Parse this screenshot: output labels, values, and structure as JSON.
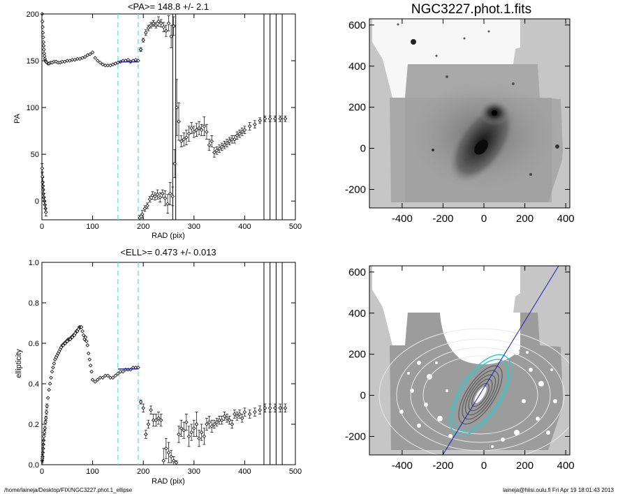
{
  "footer": {
    "path": "/home/laineja/Desktop/FIX/NGC3227.phot.1_ellipse",
    "user_date": "laineja@hiisi.oulu.fi  Fri Apr 19 18:01:43 2013"
  },
  "colors": {
    "data": "#000000",
    "fit_line": "#1c1cb4",
    "dashed": "#5fe3d6",
    "vlines": "#000000",
    "image_bg": "#c6c6c6",
    "ellipse_cyan": "#36c9c9"
  },
  "chart_data": [
    {
      "type": "scatter",
      "title": "<PA>= 148.8 +/-   2.1",
      "xlabel": "RAD (pix)",
      "ylabel": "PA",
      "xlim": [
        0,
        500
      ],
      "ylim": [
        -20,
        200
      ],
      "xticks": [
        "0",
        "100",
        "200",
        "300",
        "400",
        "500"
      ],
      "yticks": [
        "0",
        "50",
        "100",
        "150",
        "200"
      ],
      "xtick_values": [
        0,
        100,
        200,
        300,
        400,
        500
      ],
      "ytick_values": [
        0,
        50,
        100,
        150,
        200
      ],
      "mean_value": 148.8,
      "mean_error": 2.1,
      "fit_range": [
        150,
        190
      ],
      "vertical_lines": [
        258,
        264,
        438,
        450,
        462,
        474
      ],
      "series": [
        {
          "x": [
            0.5,
            1,
            1.5,
            2,
            2.5,
            3,
            3.5,
            4,
            4.5,
            5,
            6,
            7,
            8,
            10,
            12,
            14,
            17,
            20,
            24,
            28,
            32,
            36,
            40,
            45,
            50,
            55,
            60,
            65,
            70,
            75,
            80,
            85,
            90,
            95,
            100,
            105,
            110,
            115,
            120,
            125,
            130,
            135,
            140,
            145,
            150,
            155,
            160,
            165,
            170,
            175,
            180,
            185,
            190,
            195,
            200,
            205,
            210,
            215,
            220,
            225,
            230,
            235,
            240,
            245,
            250,
            255,
            260
          ],
          "y": [
            200,
            192,
            186,
            180,
            175,
            170,
            166,
            162,
            158,
            155,
            152,
            150,
            149,
            148,
            147,
            147,
            148,
            148,
            149,
            149,
            148,
            148,
            149,
            149,
            150,
            150,
            151,
            151,
            152,
            152,
            153,
            154,
            156,
            157,
            159,
            153,
            150,
            148,
            146,
            145,
            145,
            145,
            146,
            147,
            148,
            149,
            150,
            150,
            151,
            149,
            150,
            151,
            150,
            162,
            172,
            180,
            185,
            188,
            190,
            188,
            192,
            190,
            186,
            182,
            190,
            176,
            187
          ],
          "yerr": [
            0,
            0,
            0,
            0,
            0,
            0,
            0,
            0,
            0,
            0,
            0,
            0,
            0,
            0,
            0,
            0,
            0,
            0,
            0,
            0,
            0,
            0,
            0,
            0,
            0,
            0,
            0,
            0,
            0,
            0,
            0,
            0,
            0,
            0,
            0,
            0,
            0,
            0,
            0,
            0,
            0,
            0,
            0,
            0,
            0,
            0,
            0,
            0,
            0,
            0,
            0,
            0,
            0,
            2,
            2,
            3,
            3,
            3,
            3,
            3,
            5,
            4,
            5,
            6,
            8,
            12,
            10
          ]
        },
        {
          "x": [
            0.5,
            1,
            1.5,
            2,
            2.5,
            3,
            4,
            5,
            6,
            7,
            8
          ],
          "y": [
            35,
            26,
            20,
            16,
            12,
            8,
            4,
            0,
            -4,
            -8,
            -12
          ],
          "yerr": [
            5,
            5,
            5,
            5,
            5,
            5,
            4,
            4,
            4,
            4,
            4
          ]
        },
        {
          "x": [
            193,
            198,
            203,
            208,
            213,
            218,
            223,
            228,
            233,
            238,
            243,
            248,
            253,
            258,
            262,
            266,
            270,
            275,
            280,
            285,
            290,
            295,
            300,
            305,
            310,
            315,
            320,
            325,
            330,
            335,
            340,
            345,
            350,
            355,
            360,
            365,
            370,
            375,
            380,
            385,
            390,
            395,
            400,
            410,
            420,
            430,
            440,
            450,
            460,
            470,
            480
          ],
          "y": [
            -18,
            -14,
            -8,
            -5,
            2,
            6,
            5,
            7,
            4,
            8,
            3,
            -3,
            8,
            5,
            40,
            100,
            85,
            64,
            66,
            68,
            72,
            78,
            74,
            76,
            78,
            76,
            80,
            74,
            60,
            64,
            52,
            54,
            56,
            58,
            60,
            62,
            64,
            66,
            66,
            70,
            72,
            74,
            76,
            80,
            82,
            86,
            88,
            88,
            88,
            88,
            88
          ],
          "yerr": [
            3,
            4,
            3,
            3,
            3,
            4,
            4,
            5,
            5,
            4,
            8,
            10,
            12,
            10,
            15,
            30,
            20,
            6,
            7,
            8,
            8,
            6,
            6,
            7,
            7,
            6,
            10,
            8,
            6,
            6,
            5,
            4,
            4,
            4,
            4,
            4,
            4,
            4,
            4,
            4,
            4,
            4,
            4,
            4,
            4,
            3,
            3,
            3,
            3,
            3,
            3
          ]
        }
      ]
    },
    {
      "type": "scatter",
      "title": "<ELL>= 0.473 +/-  0.013",
      "xlabel": "RAD (pix)",
      "ylabel": "ellipticity",
      "xlim": [
        0,
        500
      ],
      "ylim": [
        0,
        1
      ],
      "xticks": [
        "0",
        "100",
        "200",
        "300",
        "400",
        "500"
      ],
      "yticks": [
        "0.0",
        "0.2",
        "0.4",
        "0.6",
        "0.8",
        "1.0"
      ],
      "xtick_values": [
        0,
        100,
        200,
        300,
        400,
        500
      ],
      "ytick_values": [
        0,
        0.2,
        0.4,
        0.6,
        0.8,
        1.0
      ],
      "mean_value": 0.473,
      "mean_error": 0.013,
      "fit_range": [
        150,
        190
      ],
      "vertical_lines": [
        438,
        450,
        462,
        474
      ],
      "series": [
        {
          "x": [
            0.5,
            1,
            1.5,
            2,
            2.5,
            3,
            3.5,
            4,
            5,
            6,
            7,
            8,
            9,
            10,
            12,
            14,
            16,
            18,
            20,
            22,
            24,
            26,
            28,
            30,
            32,
            34,
            36,
            38,
            40,
            42,
            44,
            46,
            48,
            50,
            52,
            54,
            56,
            58,
            60,
            62,
            64,
            66,
            68,
            70,
            72,
            74,
            76,
            78,
            80,
            82,
            84,
            86,
            88,
            90,
            92,
            94,
            96,
            98,
            100,
            105,
            110,
            115,
            120,
            125,
            130,
            135,
            140,
            145,
            150,
            155,
            160,
            165,
            170,
            175,
            180,
            185,
            190
          ],
          "y": [
            0.02,
            0.03,
            0.04,
            0.06,
            0.08,
            0.1,
            0.12,
            0.14,
            0.16,
            0.18,
            0.21,
            0.23,
            0.26,
            0.29,
            0.33,
            0.37,
            0.4,
            0.43,
            0.46,
            0.48,
            0.5,
            0.52,
            0.53,
            0.54,
            0.55,
            0.56,
            0.57,
            0.58,
            0.59,
            0.59,
            0.6,
            0.6,
            0.61,
            0.61,
            0.62,
            0.62,
            0.62,
            0.63,
            0.63,
            0.64,
            0.64,
            0.65,
            0.66,
            0.66,
            0.67,
            0.68,
            0.68,
            0.68,
            0.66,
            0.64,
            0.62,
            0.63,
            0.61,
            0.59,
            0.55,
            0.52,
            0.49,
            0.46,
            0.42,
            0.41,
            0.42,
            0.43,
            0.43,
            0.44,
            0.44,
            0.43,
            0.43,
            0.44,
            0.45,
            0.46,
            0.46,
            0.47,
            0.47,
            0.47,
            0.48,
            0.48,
            0.48
          ],
          "yerr": [
            0.02,
            0.02,
            0.02,
            0.02,
            0.02,
            0.02,
            0.02,
            0.02,
            0.01,
            0.01,
            0.01,
            0.01,
            0.01,
            0.01,
            0,
            0,
            0,
            0,
            0,
            0,
            0,
            0,
            0,
            0,
            0,
            0,
            0,
            0,
            0,
            0,
            0,
            0,
            0,
            0,
            0,
            0,
            0,
            0,
            0,
            0,
            0,
            0,
            0,
            0,
            0,
            0,
            0,
            0,
            0,
            0,
            0,
            0,
            0,
            0,
            0,
            0,
            0,
            0,
            0,
            0,
            0,
            0,
            0,
            0,
            0,
            0,
            0,
            0,
            0,
            0,
            0,
            0,
            0,
            0,
            0,
            0,
            0
          ]
        },
        {
          "x": [
            195,
            200,
            205,
            210,
            215,
            220,
            225,
            230,
            235,
            240,
            245,
            250,
            255,
            260,
            265,
            270,
            275,
            280,
            285,
            290,
            295,
            300,
            305,
            310,
            315,
            320,
            325,
            330,
            335,
            340,
            345,
            350,
            355,
            360,
            365,
            370,
            375,
            380,
            385,
            390,
            395,
            400,
            410,
            420,
            430,
            440,
            450,
            460,
            470,
            480
          ],
          "y": [
            0.31,
            0.28,
            0.15,
            0.2,
            0.27,
            0.22,
            0.22,
            0.23,
            0.22,
            0.02,
            0.08,
            0.06,
            0.04,
            0.02,
            0.01,
            0.15,
            0.18,
            0.17,
            0.21,
            0.14,
            0.16,
            0.18,
            0.2,
            0.13,
            0.16,
            0.14,
            0.2,
            0.21,
            0.19,
            0.2,
            0.21,
            0.22,
            0.22,
            0.24,
            0.23,
            0.22,
            0.2,
            0.25,
            0.24,
            0.25,
            0.23,
            0.26,
            0.25,
            0.26,
            0.27,
            0.28,
            0.28,
            0.28,
            0.28,
            0.28
          ],
          "yerr": [
            0.01,
            0.02,
            0.02,
            0.02,
            0.02,
            0.03,
            0.03,
            0.03,
            0.03,
            0.06,
            0.05,
            0.05,
            0.03,
            0.02,
            0.01,
            0.04,
            0.04,
            0.04,
            0.04,
            0.05,
            0.04,
            0.04,
            0.06,
            0.04,
            0.04,
            0.04,
            0.03,
            0.03,
            0.03,
            0.02,
            0.02,
            0.02,
            0.02,
            0.02,
            0.02,
            0.02,
            0.02,
            0.02,
            0.02,
            0.02,
            0.02,
            0.02,
            0.02,
            0.02,
            0.02,
            0.02,
            0.02,
            0.02,
            0.02,
            0.02
          ]
        }
      ]
    },
    {
      "type": "heatmap",
      "title": "NGC3227.phot.1.fits",
      "xlim": [
        -560,
        420
      ],
      "ylim": [
        -290,
        630
      ],
      "xticks": [
        "-400",
        "-200",
        "0",
        "200",
        "400"
      ],
      "yticks": [
        "-200",
        "0",
        "200",
        "400",
        "600"
      ],
      "xtick_values": [
        -400,
        -200,
        0,
        200,
        400
      ],
      "ytick_values": [
        -200,
        0,
        200,
        400,
        600
      ]
    },
    {
      "type": "heatmap",
      "title": "",
      "xlim": [
        -560,
        420
      ],
      "ylim": [
        -290,
        630
      ],
      "xticks": [
        "-400",
        "-200",
        "0",
        "200",
        "400"
      ],
      "yticks": [
        "-200",
        "0",
        "200",
        "400",
        "600"
      ],
      "xtick_values": [
        -400,
        -200,
        0,
        200,
        400
      ],
      "ytick_values": [
        -200,
        0,
        200,
        400,
        600
      ]
    }
  ]
}
